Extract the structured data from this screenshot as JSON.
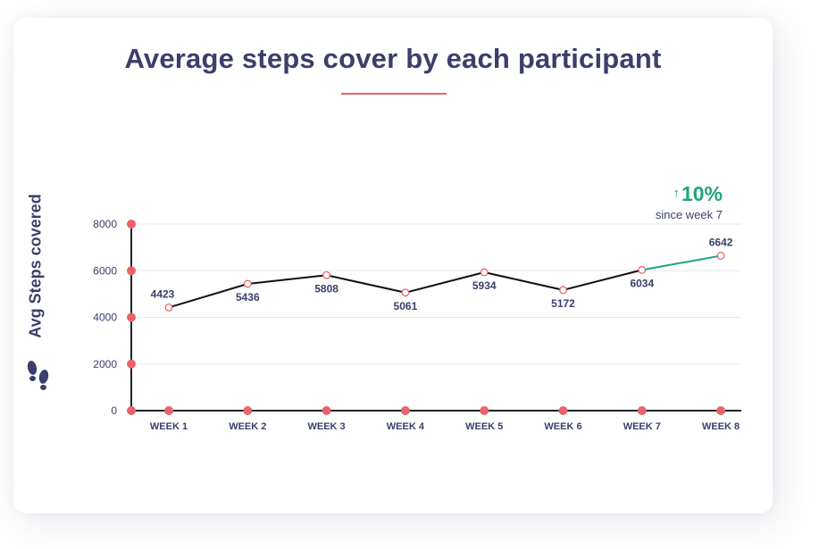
{
  "chart_data": {
    "type": "line",
    "title": "Average steps cover by each participant",
    "ylabel": "Avg Steps covered",
    "xlabel": "",
    "categories": [
      "WEEK 1",
      "WEEK 2",
      "WEEK 3",
      "WEEK 4",
      "WEEK 5",
      "WEEK 6",
      "WEEK 7",
      "WEEK 8"
    ],
    "series": [
      {
        "values": [
          4423,
          5436,
          5808,
          5061,
          5934,
          5172,
          6034,
          6642
        ]
      }
    ],
    "ylim": [
      0,
      8000
    ],
    "yticks": [
      0,
      2000,
      4000,
      6000,
      8000
    ],
    "grid": true,
    "annotation": {
      "arrow": "↑",
      "value": "10%",
      "text": "since week 7"
    },
    "colors": {
      "line": "#111111",
      "highlight": "#1ea67a",
      "marker": "#e8636b",
      "text": "#3a3f6b"
    }
  }
}
